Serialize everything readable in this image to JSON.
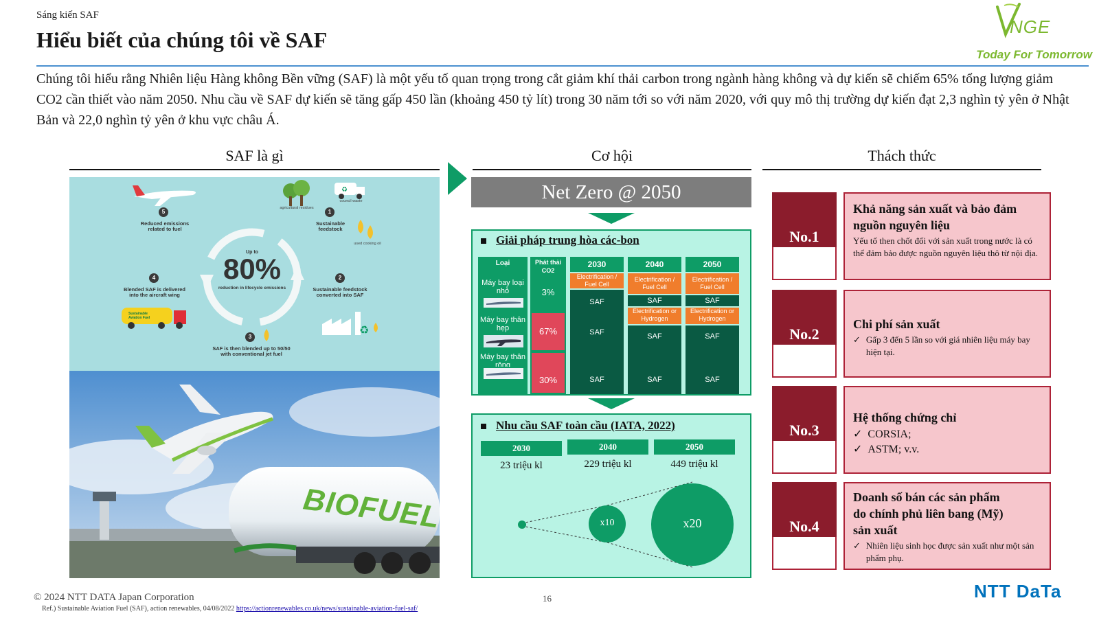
{
  "header": {
    "breadcrumb": "Sáng kiến SAF",
    "title": "Hiểu biết của chúng tôi về SAF",
    "intro": "Chúng tôi hiểu rằng Nhiên liệu Hàng không Bền vững (SAF) là một yếu tố quan trọng trong cắt giảm khí thải carbon trong ngành hàng không và dự kiến sẽ chiếm 65% tổng lượng giảm CO2 cần thiết vào năm 2050. Nhu cầu về SAF dự kiến sẽ tăng gấp 450 lần (khoảng 450 tỷ lít) trong 30 năm tới so với năm 2020, với quy mô thị trường dự kiến đạt 2,3 nghìn tỷ yên ở Nhật Bản và 22,0 nghìn tỷ yên ở khu vực châu Á."
  },
  "logo": {
    "brand": "VNGE",
    "tagline": "Today For Tomorrow",
    "brand_color": "#7cb82f"
  },
  "columns": {
    "what": "SAF là gì",
    "opportunity": "Cơ hội",
    "challenge": "Thách thức"
  },
  "infographic": {
    "center_small": "Up to",
    "center_big": "80%",
    "center_caption": "reduction in lifecycle emissions",
    "steps": [
      {
        "num": "1",
        "text": "Sustainable feedstock"
      },
      {
        "num": "2",
        "text": "Sustainable feedstock converted into SAF"
      },
      {
        "num": "3",
        "text": "SAF is then blended up to 50/50 with conventional jet fuel"
      },
      {
        "num": "4",
        "text": "Blended SAF is delivered into the aircraft wing"
      },
      {
        "num": "5",
        "text": "Reduced emissions related to fuel"
      }
    ],
    "labels": {
      "agri": "agricultural residues",
      "council": "council waste",
      "oil": "used cooking oil",
      "truck": "Sustainable Aviation Fuel"
    }
  },
  "photo": {
    "tank_text": "BIOFUEL"
  },
  "opportunity": {
    "netzero": "Net Zero @ 2050",
    "carbon": {
      "heading": "Giải pháp trung hòa các-bon",
      "col_type": "Loại",
      "col_emission": "Phát thải CO2",
      "aircraft": [
        "Máy bay loại nhỏ",
        "Máy bay thân hẹp",
        "Máy bay thân rộng"
      ],
      "emissions": [
        "3%",
        "67%",
        "30%"
      ],
      "years": [
        "2030",
        "2040",
        "2050"
      ],
      "cells": {
        "elec1": "Electrification / Fuel Cell",
        "elec2": "Electrification / Fuel Cell",
        "elec3": "Electrification / Fuel Cell",
        "hyd2": "Electrification or Hydrogen",
        "hyd3": "Electrification or Hydrogen",
        "saf": "SAF"
      }
    },
    "demand": {
      "heading": "Nhu cầu SAF toàn cầu (IATA, 2022)",
      "years": [
        "2030",
        "2040",
        "2050"
      ],
      "values": [
        "23 triệu kl",
        "229 triệu kl",
        "449 triệu kl"
      ],
      "multipliers": [
        "x10",
        "x20"
      ]
    }
  },
  "challenges": [
    {
      "no": "No.1",
      "title": "Khả năng sản xuất và bảo đảm nguồn nguyên liệu",
      "desc": "Yếu tố then chốt đối với sản xuất trong nước là có thể đảm bảo được nguồn nguyên liệu thô từ nội địa."
    },
    {
      "no": "No.2",
      "title": "Chi phí sản xuất",
      "desc": "Gấp 3 đến 5 lần so với giá nhiên liệu máy bay hiện tại."
    },
    {
      "no": "No.3",
      "title": "Hệ thống chứng chỉ",
      "desc1": "CORSIA;",
      "desc2": "ASTM;  v.v."
    },
    {
      "no": "No.4",
      "title": "Doanh số bán các sản phẩm do chính phủ liên bang (Mỹ) sản xuất",
      "desc": "Nhiên liệu sinh học được sản xuất như một sản phẩm phụ."
    }
  ],
  "footer": {
    "copyright": "© 2024 NTT DATA Japan Corporation",
    "page": "16",
    "ref_prefix": "Ref.) Sustainable Aviation Fuel (SAF), action renewables, 04/08/2022",
    "ref_link": "https://actionrenewables.co.uk/news/sustainable-aviation-fuel-saf/",
    "company": "NTT DaTa",
    "company_color": "#0072bc"
  }
}
